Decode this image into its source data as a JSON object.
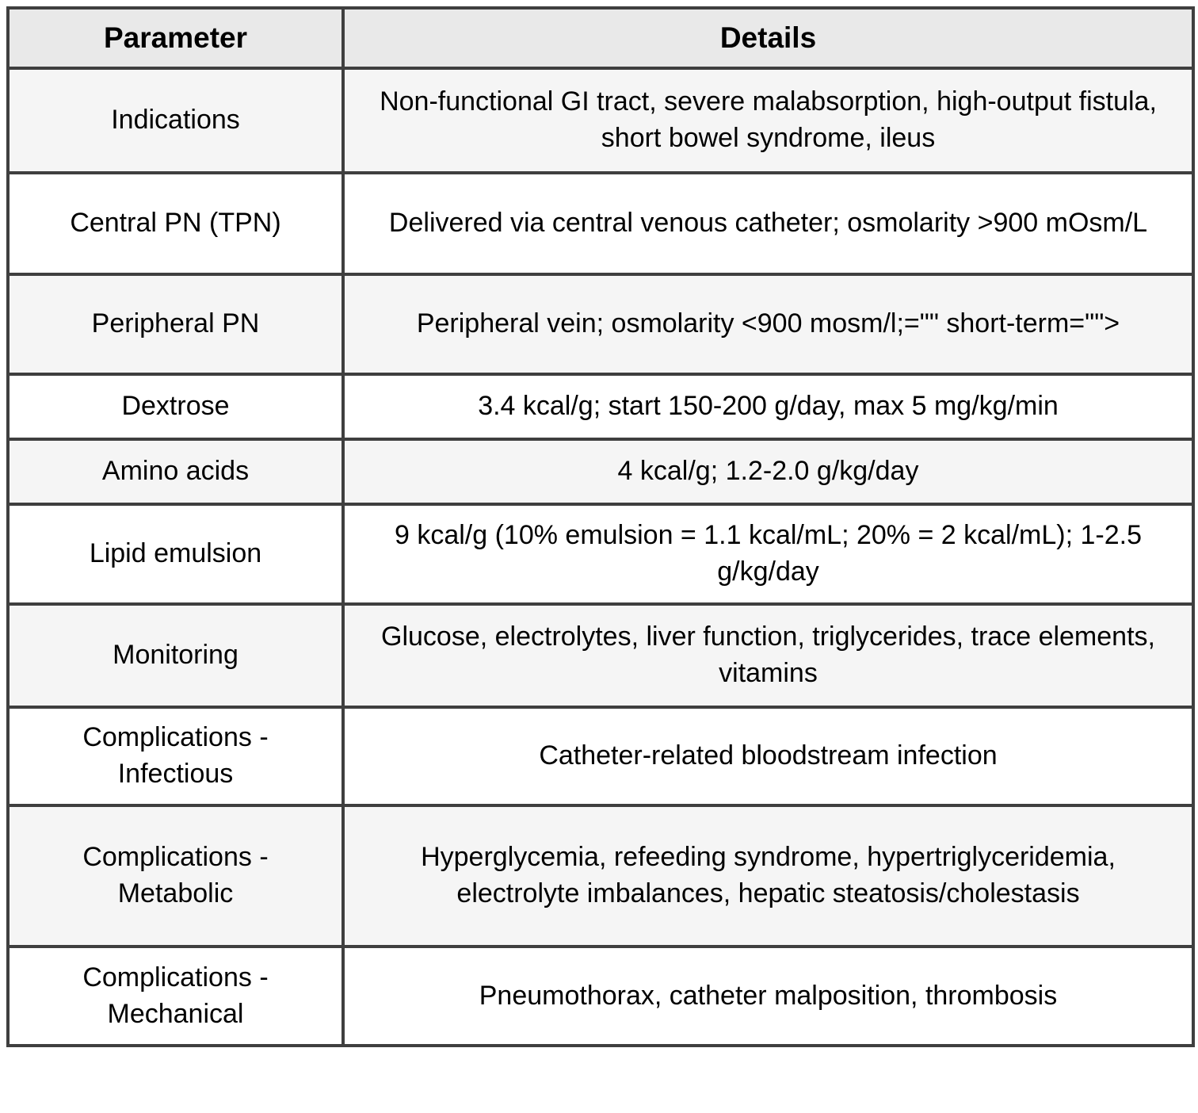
{
  "table": {
    "headers": {
      "parameter": "Parameter",
      "details": "Details"
    },
    "rows": [
      {
        "parameter": "Indications",
        "details": "Non-functional GI tract, severe malabsorption, high-output fistula, short bowel syndrome, ileus"
      },
      {
        "parameter": "Central PN (TPN)",
        "details": "Delivered via central venous catheter; osmolarity >900 mOsm/L"
      },
      {
        "parameter": "Peripheral PN",
        "details": "Peripheral vein; osmolarity <900 mosm/l;=\"\" short-term=\"\">"
      },
      {
        "parameter": "Dextrose",
        "details": "3.4 kcal/g; start 150-200 g/day, max 5 mg/kg/min"
      },
      {
        "parameter": "Amino acids",
        "details": "4 kcal/g; 1.2-2.0 g/kg/day"
      },
      {
        "parameter": "Lipid emulsion",
        "details": "9 kcal/g (10% emulsion = 1.1 kcal/mL; 20% = 2 kcal/mL); 1-2.5 g/kg/day"
      },
      {
        "parameter": "Monitoring",
        "details": "Glucose, electrolytes, liver function, triglycerides, trace elements, vitamins"
      },
      {
        "parameter": "Complications - Infectious",
        "details": "Catheter-related bloodstream infection"
      },
      {
        "parameter": "Complications - Metabolic",
        "details": "Hyperglycemia, refeeding syndrome, hypertriglyceridemia, electrolyte imbalances, hepatic steatosis/cholestasis"
      },
      {
        "parameter": "Complications - Mechanical",
        "details": "Pneumothorax, catheter malposition, thrombosis"
      }
    ],
    "colors": {
      "border": "#3f3f3f",
      "header_bg": "#e9e9e9",
      "row_alt_bg": "#f5f5f5",
      "row_bg": "#ffffff"
    }
  }
}
